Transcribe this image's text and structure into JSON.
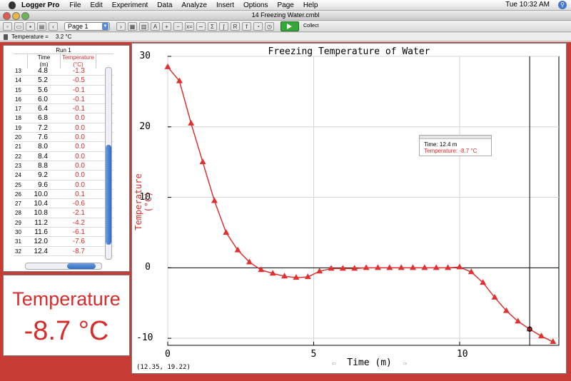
{
  "menubar": {
    "app_name": "Logger Pro",
    "items": [
      "File",
      "Edit",
      "Experiment",
      "Data",
      "Analyze",
      "Insert",
      "Options",
      "Page",
      "Help"
    ],
    "clock": "Tue 10:32 AM"
  },
  "window": {
    "title": "14 Freezing Water.cmbl"
  },
  "toolbar": {
    "page_select": "Page 1",
    "collect_label": "Collect"
  },
  "sensor": {
    "label": "Temperature =",
    "value": "3.2 °C"
  },
  "table": {
    "run_label": "Run 1",
    "columns": [
      {
        "name": "Time",
        "unit": "(m)"
      },
      {
        "name": "Temperature",
        "unit": "(°C)"
      }
    ],
    "rows": [
      {
        "idx": "13",
        "time": "4.8",
        "temp": "-1.3"
      },
      {
        "idx": "14",
        "time": "5.2",
        "temp": "-0.5"
      },
      {
        "idx": "15",
        "time": "5.6",
        "temp": "-0.1"
      },
      {
        "idx": "16",
        "time": "6.0",
        "temp": "-0.1"
      },
      {
        "idx": "17",
        "time": "6.4",
        "temp": "-0.1"
      },
      {
        "idx": "18",
        "time": "6.8",
        "temp": "0.0"
      },
      {
        "idx": "19",
        "time": "7.2",
        "temp": "0.0"
      },
      {
        "idx": "20",
        "time": "7.6",
        "temp": "0.0"
      },
      {
        "idx": "21",
        "time": "8.0",
        "temp": "0.0"
      },
      {
        "idx": "22",
        "time": "8.4",
        "temp": "0.0"
      },
      {
        "idx": "23",
        "time": "8.8",
        "temp": "0.0"
      },
      {
        "idx": "24",
        "time": "9.2",
        "temp": "0.0"
      },
      {
        "idx": "25",
        "time": "9.6",
        "temp": "0.0"
      },
      {
        "idx": "26",
        "time": "10.0",
        "temp": "0.1"
      },
      {
        "idx": "27",
        "time": "10.4",
        "temp": "-0.6"
      },
      {
        "idx": "28",
        "time": "10.8",
        "temp": "-2.1"
      },
      {
        "idx": "29",
        "time": "11.2",
        "temp": "-4.2"
      },
      {
        "idx": "30",
        "time": "11.6",
        "temp": "-6.1"
      },
      {
        "idx": "31",
        "time": "12.0",
        "temp": "-7.6"
      },
      {
        "idx": "32",
        "time": "12.4",
        "temp": "-8.7"
      }
    ]
  },
  "meter": {
    "label": "Temperature",
    "value": "-8.7 °C"
  },
  "graph": {
    "coord_readout": "(12.35, 19.22)",
    "examine_time": "Time: 12.4 m",
    "examine_temp": "Temperature: -8.7 °C",
    "cursor_x": 12.4
  },
  "chart_data": {
    "type": "line",
    "title": "Freezing Temperature of Water",
    "xlabel": "Time (m)",
    "ylabel": "Temperature (°C)",
    "xlim": [
      0,
      13.4
    ],
    "ylim": [
      -11,
      30
    ],
    "x_ticks": [
      0,
      5,
      10
    ],
    "y_ticks": [
      30,
      20,
      10,
      0,
      -10
    ],
    "grid": true,
    "marker": "triangle",
    "color": "#e03030",
    "series": [
      {
        "x": [
          0,
          0.4,
          0.8,
          1.2,
          1.6,
          2.0,
          2.4,
          2.8,
          3.2,
          3.6,
          4.0,
          4.4,
          4.8,
          5.2,
          5.6,
          6.0,
          6.4,
          6.8,
          7.2,
          7.6,
          8.0,
          8.4,
          8.8,
          9.2,
          9.6,
          10.0,
          10.4,
          10.8,
          11.2,
          11.6,
          12.0,
          12.4,
          12.8,
          13.2
        ],
        "y": [
          28.5,
          26.5,
          20.5,
          15.0,
          9.5,
          5.0,
          2.5,
          0.8,
          -0.3,
          -0.8,
          -1.2,
          -1.4,
          -1.3,
          -0.5,
          -0.1,
          -0.1,
          -0.1,
          0.0,
          0.0,
          0.0,
          0.0,
          0.0,
          0.0,
          0.0,
          0.0,
          0.1,
          -0.6,
          -2.1,
          -4.2,
          -6.1,
          -7.6,
          -8.7,
          -9.7,
          -10.5
        ]
      }
    ]
  }
}
